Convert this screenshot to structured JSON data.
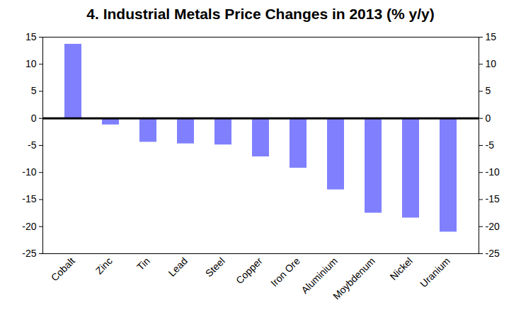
{
  "chart_data": {
    "type": "bar",
    "title": "4. Industrial Metals Price Changes in 2013 (% y/y)",
    "categories": [
      "Cobalt",
      "Zinc",
      "Tin",
      "Lead",
      "Steel",
      "Copper",
      "Iron Ore",
      "Aluminium",
      "Moybdenum",
      "Nickel",
      "Uranium"
    ],
    "values": [
      13.7,
      -1.2,
      -4.4,
      -4.7,
      -4.9,
      -7.1,
      -9.2,
      -13.2,
      -17.5,
      -18.4,
      -21.0
    ],
    "color": "#8080ff",
    "ylim": [
      -25,
      15
    ],
    "yticks": [
      -25,
      -20,
      -15,
      -10,
      -5,
      0,
      5,
      10,
      15
    ],
    "grid": false
  }
}
